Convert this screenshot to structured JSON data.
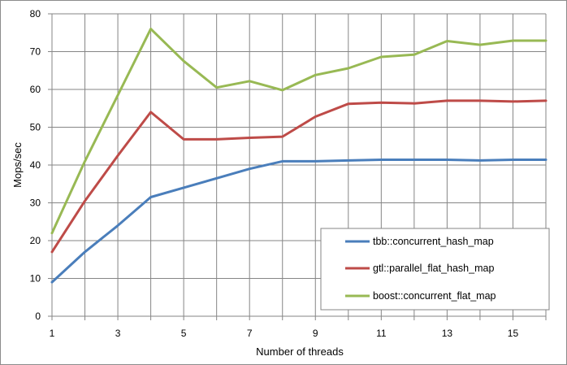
{
  "chart_data": {
    "type": "line",
    "title": "",
    "xlabel": "Number of threads",
    "ylabel": "Mops/sec",
    "x": [
      1,
      2,
      3,
      4,
      5,
      6,
      7,
      8,
      9,
      10,
      11,
      12,
      13,
      14,
      15,
      16
    ],
    "xlim": [
      1,
      16
    ],
    "ylim": [
      0,
      80
    ],
    "x_ticks": [
      1,
      3,
      5,
      7,
      9,
      11,
      13,
      15
    ],
    "y_ticks": [
      0,
      10,
      20,
      30,
      40,
      50,
      60,
      70,
      80
    ],
    "grid": true,
    "legend_position": "bottom-right",
    "series": [
      {
        "name": "tbb::concurrent_hash_map",
        "color": "#4a7ebb",
        "values": [
          9,
          17,
          24,
          31.5,
          34,
          36.5,
          39,
          41,
          41,
          41.2,
          41.4,
          41.4,
          41.4,
          41.2,
          41.4,
          41.4
        ]
      },
      {
        "name": "gtl::parallel_flat_hash_map",
        "color": "#be4b48",
        "values": [
          17,
          30.5,
          42.5,
          54,
          46.8,
          46.8,
          47.2,
          47.5,
          52.8,
          56.2,
          56.5,
          56.3,
          57,
          57,
          56.8,
          57
        ]
      },
      {
        "name": "boost::concurrent_flat_map",
        "color": "#98b954",
        "values": [
          22,
          41,
          58.5,
          76,
          67.5,
          60.5,
          62.2,
          59.8,
          63.8,
          65.6,
          68.6,
          69.2,
          72.8,
          71.8,
          72.9,
          72.9
        ]
      }
    ]
  }
}
